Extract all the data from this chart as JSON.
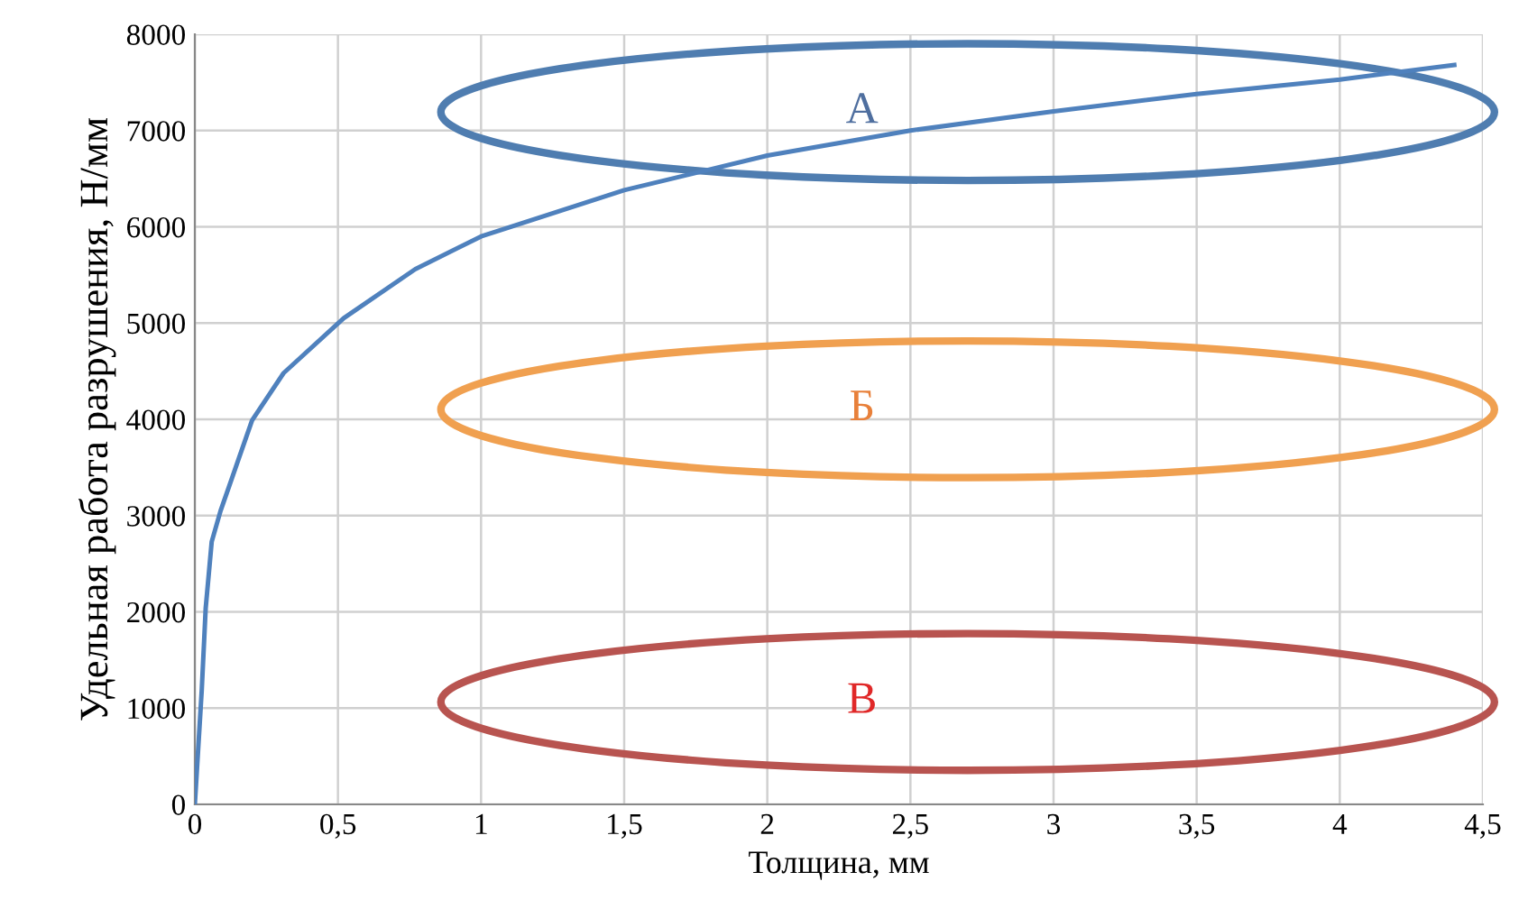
{
  "chart_data": {
    "type": "line",
    "xlabel": "Толщина, мм",
    "ylabel": "Удельная работа разрушения, Н/мм",
    "series": [
      {
        "color": "#4f81bd",
        "x": [
          0,
          0.024,
          0.038,
          0.059,
          0.09,
          0.2,
          0.31,
          0.52,
          0.77,
          1,
          1.5,
          2,
          2.5,
          3,
          3.5,
          4,
          4.4
        ],
        "values": [
          0,
          1180,
          2040,
          2730,
          3050,
          3990,
          4480,
          5050,
          5560,
          5900,
          6380,
          6740,
          7000,
          7200,
          7380,
          7530,
          7680
        ]
      }
    ],
    "annotations": [
      "А",
      "Б",
      "В"
    ],
    "xlim": [
      0,
      4.5
    ],
    "ylim": [
      0,
      8000
    ],
    "xticks": [
      0,
      {
        "value": 0.5,
        "label": "0,5"
      },
      1,
      {
        "value": 1.5,
        "label": "1,5"
      },
      2,
      {
        "value": 2.5,
        "label": "2,5"
      },
      3,
      {
        "value": 3.5,
        "label": "3,5"
      },
      4,
      {
        "value": 4.5,
        "label": "4,5"
      }
    ],
    "yticks": [
      0,
      1000,
      2000,
      3000,
      4000,
      5000,
      6000,
      7000,
      8000
    ],
    "grid": true,
    "marker": "none",
    "line_style": "solid",
    "legend": false
  }
}
